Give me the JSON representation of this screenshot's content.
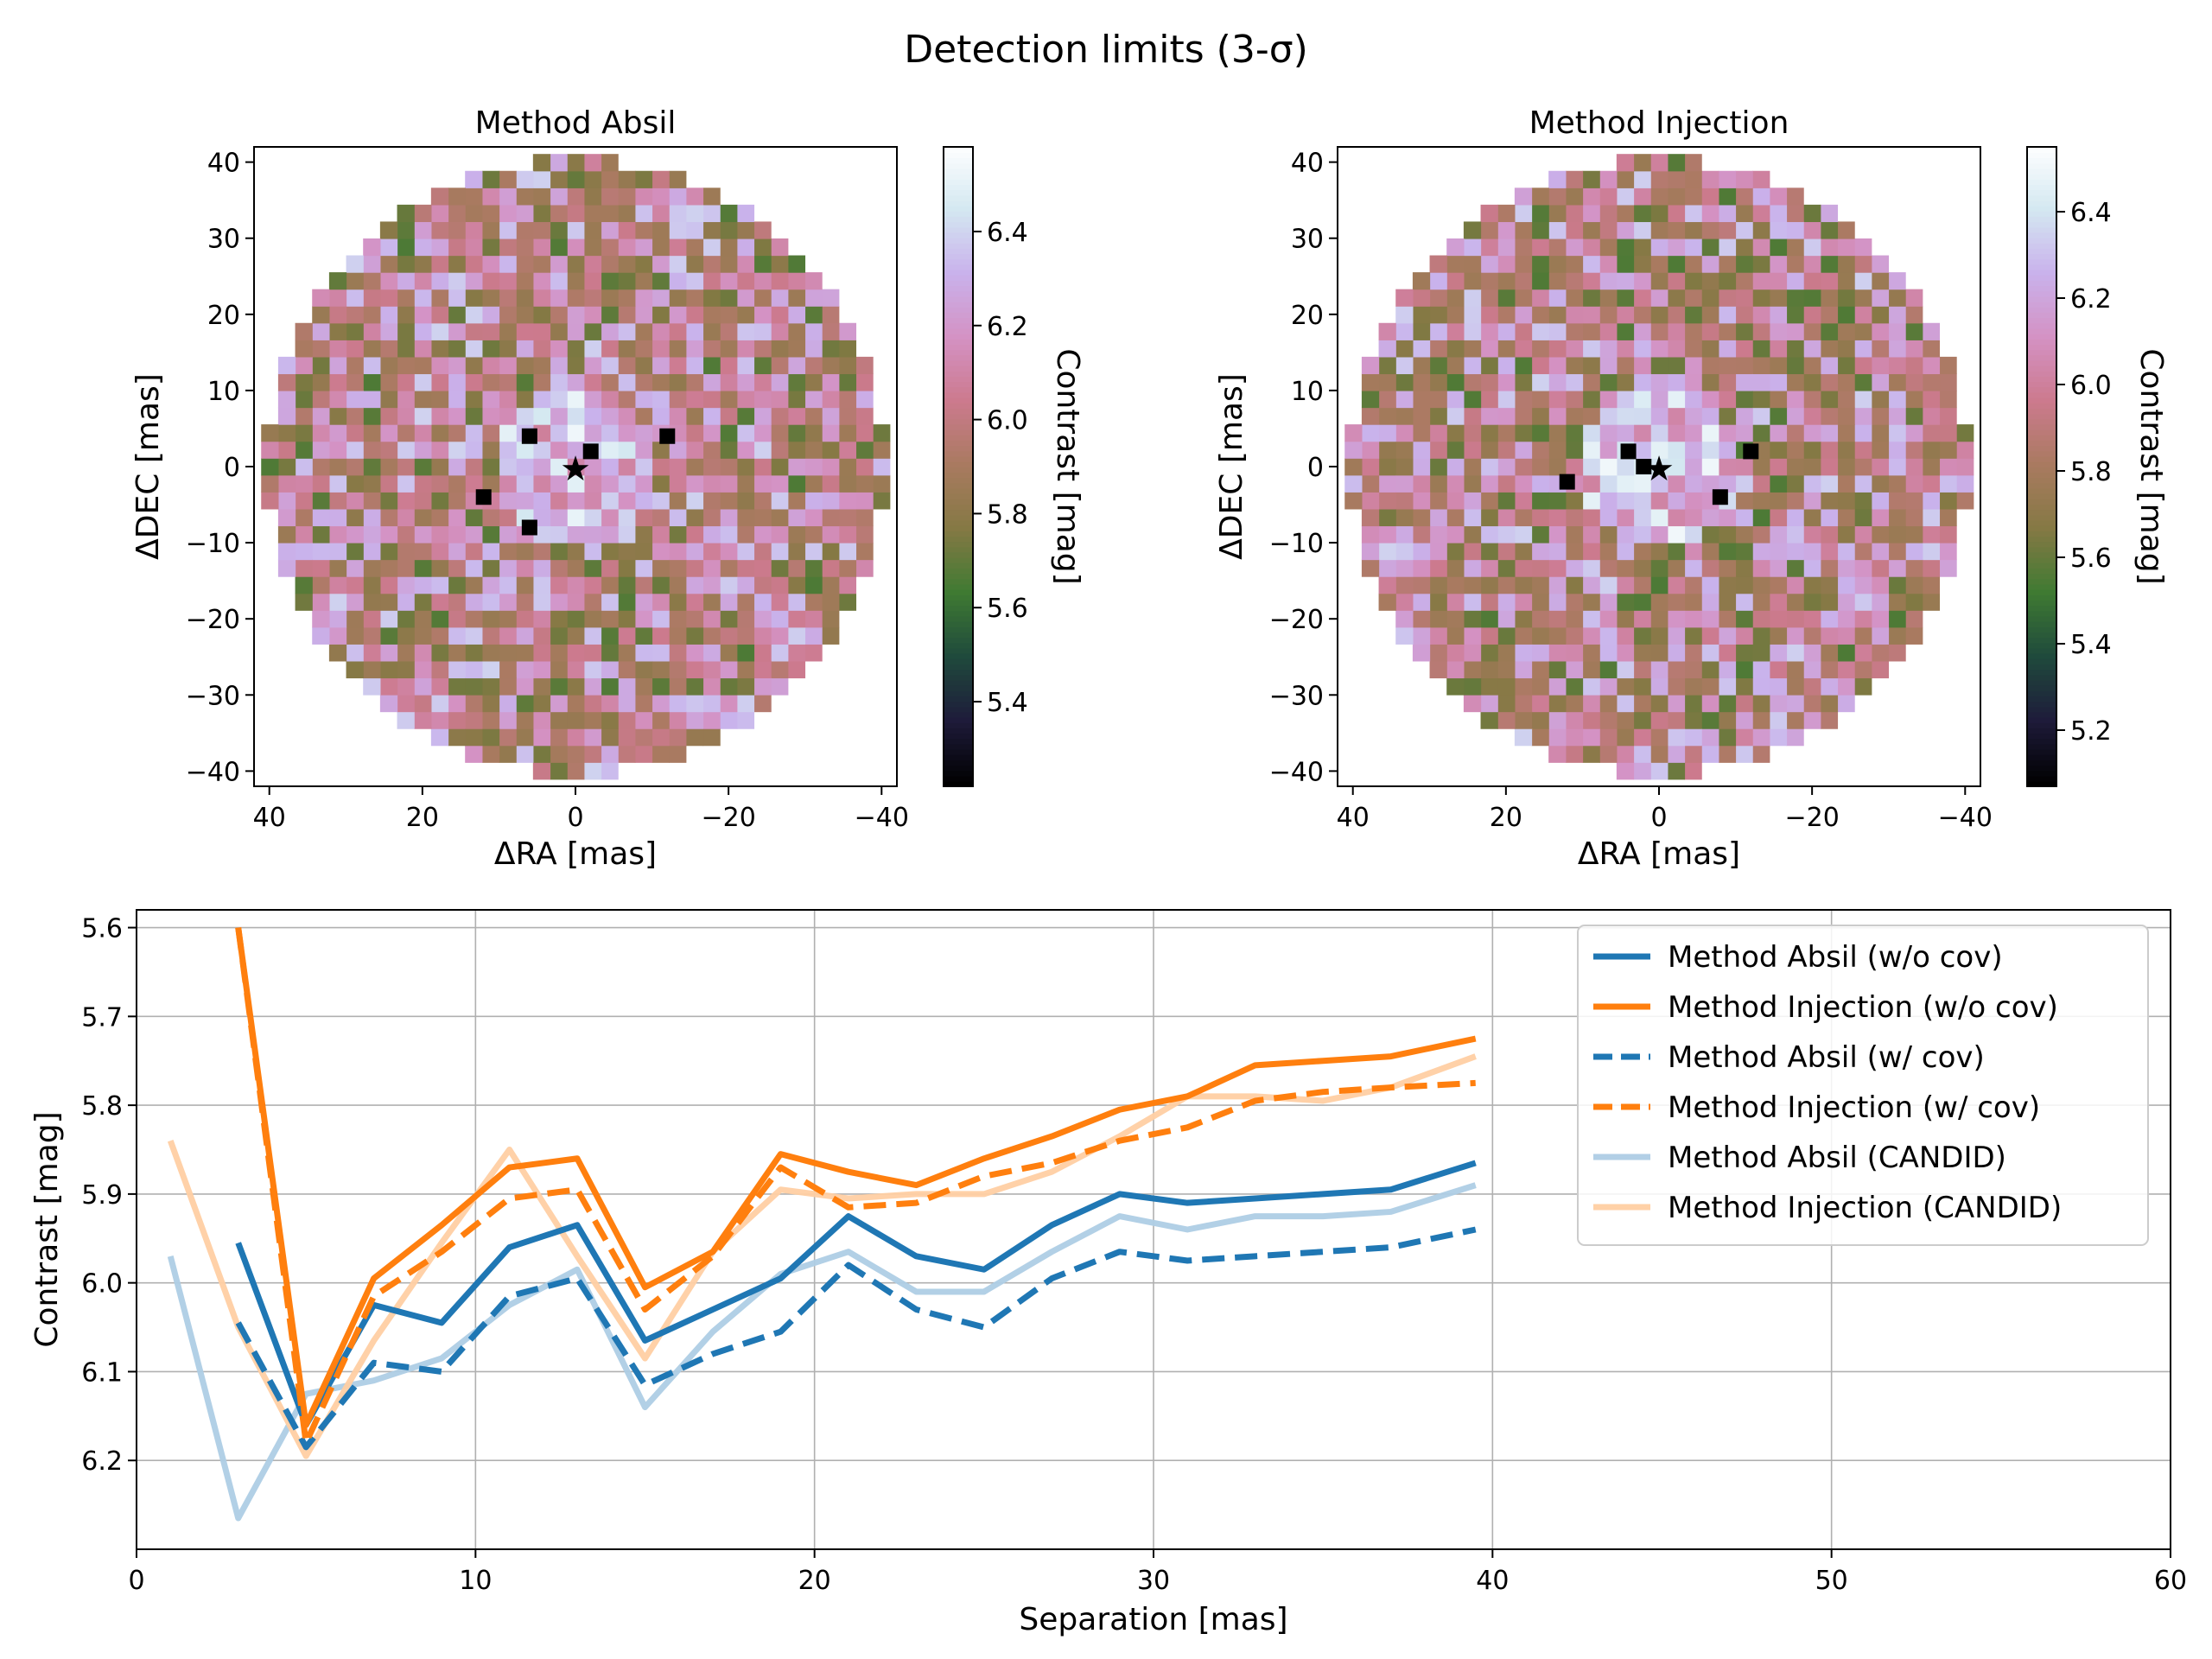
{
  "suptitle": "Detection limits (3-σ)",
  "colormap": [
    "#000000",
    "#1e1b3a",
    "#1f4a3c",
    "#3f7a32",
    "#857944",
    "#a97a60",
    "#cc7a8e",
    "#d492c4",
    "#c9b2ec",
    "#d4e8f1",
    "#ffffff"
  ],
  "maps": [
    {
      "title": "Method Absil",
      "xlabel": "ΔRA [mas]",
      "ylabel": "ΔDEC [mas]",
      "ticks": [
        "40",
        "20",
        "0",
        "−20",
        "−40"
      ],
      "star_symbol": "★",
      "colorbar": {
        "label": "Contrast [mag]",
        "min": 5.22,
        "max": 6.58,
        "ticks": [
          "5.4",
          "5.6",
          "5.8",
          "6.0",
          "6.2",
          "6.4"
        ],
        "tick_values": [
          5.4,
          5.6,
          5.8,
          6.0,
          6.2,
          6.4
        ]
      },
      "seed": 11,
      "dark_points_mas": [
        [
          -12,
          4
        ],
        [
          12,
          -4
        ],
        [
          6,
          -8
        ],
        [
          6,
          4
        ],
        [
          -2,
          2
        ]
      ]
    },
    {
      "title": "Method Injection",
      "xlabel": "ΔRA [mas]",
      "ylabel": "ΔDEC [mas]",
      "ticks": [
        "40",
        "20",
        "0",
        "−20",
        "−40"
      ],
      "star_symbol": "★",
      "colorbar": {
        "label": "Contrast [mag]",
        "min": 5.07,
        "max": 6.55,
        "ticks": [
          "5.2",
          "5.4",
          "5.6",
          "5.8",
          "6.0",
          "6.2",
          "6.4"
        ],
        "tick_values": [
          5.2,
          5.4,
          5.6,
          5.8,
          6.0,
          6.2,
          6.4
        ]
      },
      "seed": 29,
      "dark_points_mas": [
        [
          -12,
          2
        ],
        [
          12,
          -2
        ],
        [
          2,
          0
        ],
        [
          -8,
          -4
        ],
        [
          4,
          2
        ]
      ]
    }
  ],
  "chart_data": {
    "type": "line",
    "xlabel": "Separation [mas]",
    "ylabel": "Contrast [mag]",
    "xlim": [
      0,
      60
    ],
    "ylim": [
      6.3,
      5.58
    ],
    "y_inverted": true,
    "grid": true,
    "legend_position": "top-right",
    "xticks": [
      "0",
      "10",
      "20",
      "30",
      "40",
      "50",
      "60"
    ],
    "xtick_values": [
      0,
      10,
      20,
      30,
      40,
      50,
      60
    ],
    "yticks": [
      "5.6",
      "5.7",
      "5.8",
      "5.9",
      "6.0",
      "6.1",
      "6.2"
    ],
    "ytick_values": [
      5.6,
      5.7,
      5.8,
      5.9,
      6.0,
      6.1,
      6.2
    ],
    "series": [
      {
        "name": "Method Absil (w/o cov)",
        "color": "#1f77b4",
        "dash": "solid",
        "opacity": 1,
        "x": [
          3,
          5,
          7,
          9,
          11,
          13,
          15,
          17,
          19,
          21,
          23,
          25,
          27,
          29,
          31,
          33,
          35,
          37,
          39.5
        ],
        "y": [
          5.955,
          6.16,
          6.025,
          6.045,
          5.96,
          5.935,
          6.065,
          6.03,
          5.995,
          5.925,
          5.97,
          5.985,
          5.935,
          5.9,
          5.91,
          5.905,
          5.9,
          5.895,
          5.865
        ]
      },
      {
        "name": "Method Injection (w/o cov)",
        "color": "#ff7f0e",
        "dash": "solid",
        "opacity": 1,
        "x": [
          3,
          5,
          7,
          9,
          11,
          13,
          15,
          17,
          19,
          21,
          23,
          25,
          27,
          29,
          31,
          33,
          35,
          37,
          39.5
        ],
        "y": [
          5.6,
          6.16,
          5.995,
          5.935,
          5.87,
          5.86,
          6.005,
          5.965,
          5.855,
          5.875,
          5.89,
          5.86,
          5.835,
          5.805,
          5.79,
          5.755,
          5.75,
          5.745,
          5.725
        ]
      },
      {
        "name": "Method Absil (w/ cov)",
        "color": "#1f77b4",
        "dash": "dashed",
        "opacity": 1,
        "x": [
          3,
          5,
          7,
          9,
          11,
          13,
          15,
          17,
          19,
          21,
          23,
          25,
          27,
          29,
          31,
          33,
          35,
          37,
          39.5
        ],
        "y": [
          6.045,
          6.185,
          6.09,
          6.1,
          6.015,
          5.995,
          6.115,
          6.08,
          6.055,
          5.98,
          6.03,
          6.05,
          5.995,
          5.965,
          5.975,
          5.97,
          5.965,
          5.96,
          5.94
        ]
      },
      {
        "name": "Method Injection (w/ cov)",
        "color": "#ff7f0e",
        "dash": "dashed",
        "opacity": 1,
        "x": [
          3,
          5,
          7,
          9,
          11,
          13,
          15,
          17,
          19,
          21,
          23,
          25,
          27,
          29,
          31,
          33,
          35,
          37,
          39.5
        ],
        "y": [
          5.6,
          6.18,
          6.015,
          5.965,
          5.905,
          5.895,
          6.03,
          5.97,
          5.87,
          5.915,
          5.91,
          5.88,
          5.865,
          5.84,
          5.825,
          5.795,
          5.785,
          5.78,
          5.775
        ]
      },
      {
        "name": "Method Absil (CANDID)",
        "color": "#aecde5",
        "dash": "solid",
        "opacity": 0.95,
        "x": [
          1,
          3,
          5,
          7,
          9,
          11,
          13,
          15,
          17,
          19,
          21,
          23,
          25,
          27,
          29,
          31,
          33,
          35,
          37,
          39.5
        ],
        "y": [
          5.97,
          6.265,
          6.125,
          6.11,
          6.085,
          6.025,
          5.985,
          6.14,
          6.055,
          5.99,
          5.965,
          6.01,
          6.01,
          5.965,
          5.925,
          5.94,
          5.925,
          5.925,
          5.92,
          5.89
        ]
      },
      {
        "name": "Method Injection (CANDID)",
        "color": "#ffcfa3",
        "dash": "solid",
        "opacity": 0.95,
        "x": [
          1,
          3,
          5,
          7,
          9,
          11,
          13,
          15,
          17,
          19,
          21,
          23,
          25,
          27,
          29,
          31,
          33,
          35,
          37,
          39.5
        ],
        "y": [
          5.84,
          6.05,
          6.195,
          6.065,
          5.955,
          5.85,
          5.97,
          6.085,
          5.965,
          5.895,
          5.905,
          5.9,
          5.9,
          5.875,
          5.835,
          5.79,
          5.79,
          5.795,
          5.78,
          5.745
        ]
      }
    ]
  }
}
